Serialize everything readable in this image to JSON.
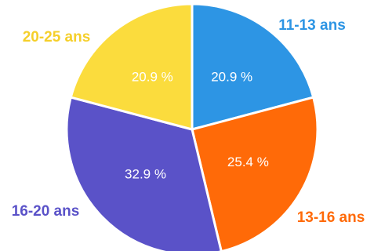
{
  "chart_data": {
    "type": "pie",
    "slices": [
      {
        "name": "11-13 ans",
        "value": 20.9,
        "label": "20.9 %",
        "color": "#2d95e4"
      },
      {
        "name": "13-16 ans",
        "value": 25.4,
        "label": "25.4 %",
        "color": "#ff6a08"
      },
      {
        "name": "16-20 ans",
        "value": 32.9,
        "label": "32.9 %",
        "color": "#5a52c8"
      },
      {
        "name": "20-25 ans",
        "value": 20.9,
        "label": "20.9 %",
        "color": "#fbdc3d"
      }
    ],
    "start": "top",
    "direction": "clockwise",
    "border_color": "#ffffff"
  }
}
